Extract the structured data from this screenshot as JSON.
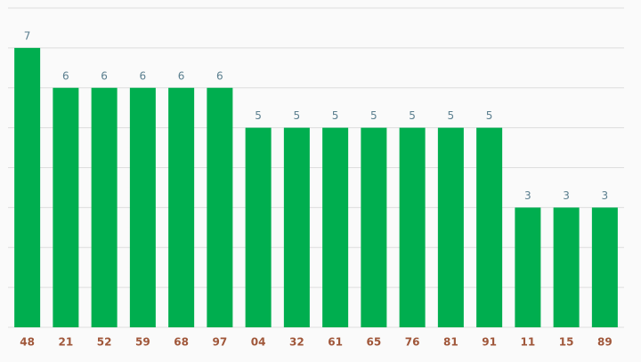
{
  "chart_data": {
    "type": "bar",
    "categories": [
      "48",
      "21",
      "52",
      "59",
      "68",
      "97",
      "04",
      "32",
      "61",
      "65",
      "76",
      "81",
      "91",
      "11",
      "15",
      "89"
    ],
    "values": [
      7,
      6,
      6,
      6,
      6,
      6,
      5,
      5,
      5,
      5,
      5,
      5,
      5,
      3,
      3,
      3
    ],
    "color": "#00ae4f",
    "ylim": [
      0,
      8
    ],
    "yticks": [
      0,
      1,
      2,
      3,
      4,
      5,
      6,
      7,
      8
    ],
    "grid": true
  }
}
